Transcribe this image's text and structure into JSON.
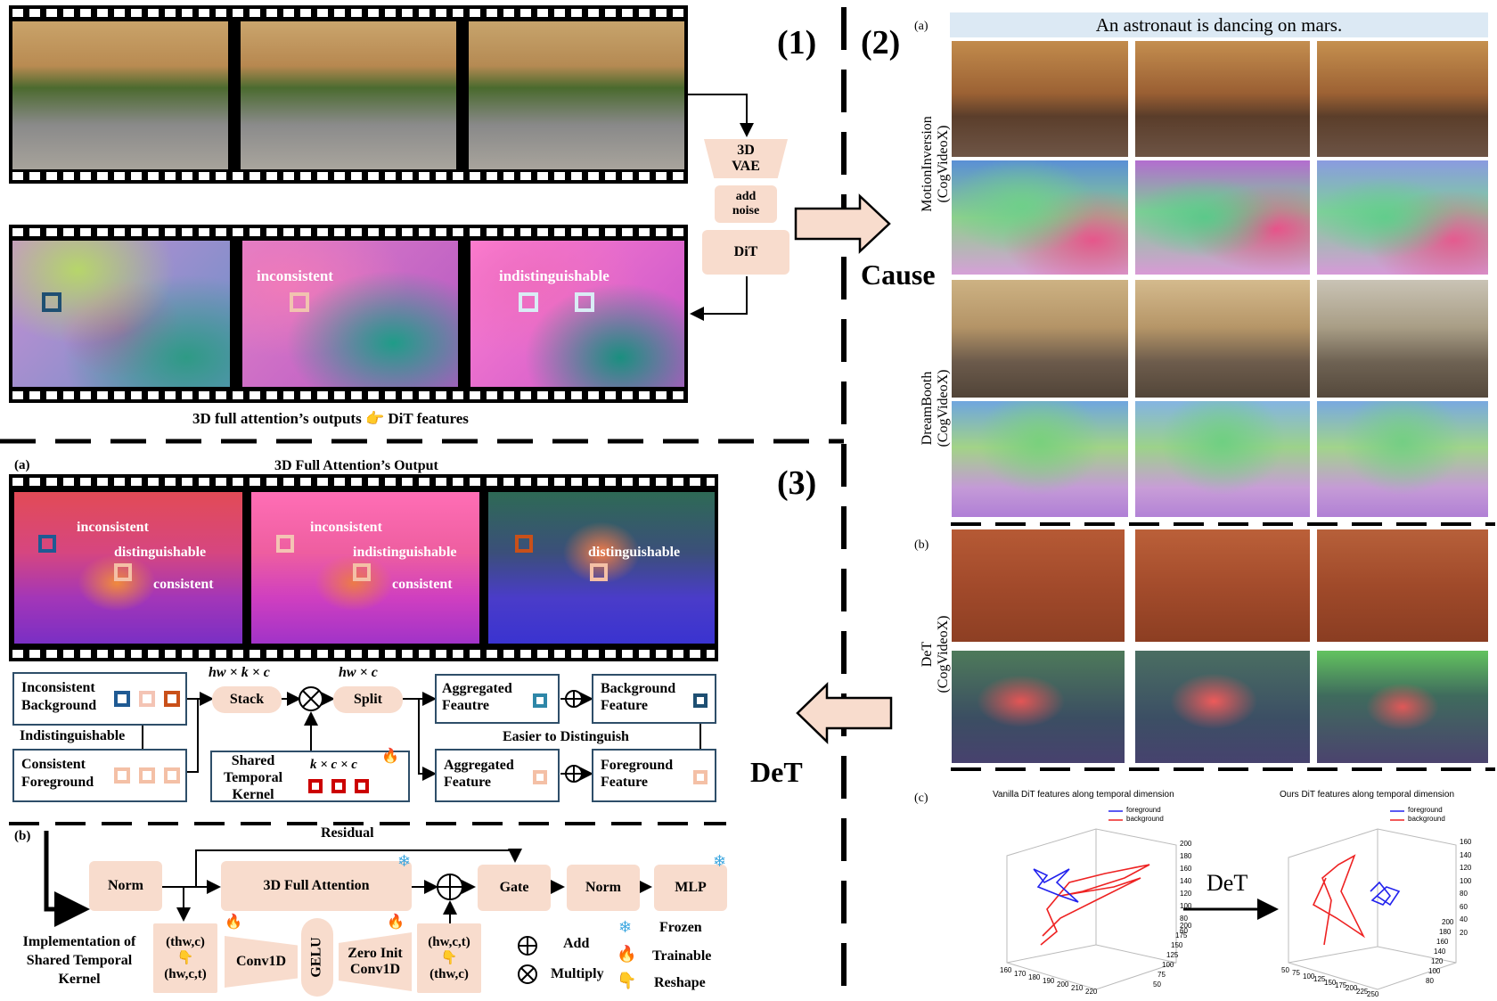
{
  "labels": {
    "p1": "(1)",
    "p2": "(2)",
    "p3": "(3)",
    "a_small": "(a)",
    "b_small": "(b)",
    "c_small": "(c)",
    "cause": "Cause",
    "det_big": "DeT",
    "det_plot": "DeT"
  },
  "part1": {
    "vae": "3D VAE",
    "add_noise": "add noise",
    "dit": "DiT",
    "inconsistent": "inconsistent",
    "indistinguishable": "indistinguishable",
    "caption_left": "3D full attention’s outputs",
    "caption_icon": "👉",
    "caption_right": "DiT features"
  },
  "part2": {
    "prompt": "An astronaut is dancing on mars.",
    "row_label_1": "MotionInversion",
    "row_label_1b": "(CogVideoX)",
    "row_label_2": "DreamBooth",
    "row_label_2b": "(CogVideoX)",
    "row_label_3": "DeT",
    "row_label_3b": "(CogVideoX)",
    "plot_left_title": "Vanilla DiT features along temporal dimension",
    "plot_right_title": "Ours DiT features along temporal dimension",
    "legend_fg": "foreground",
    "legend_bg": "background",
    "left_z_ticks": [
      "200",
      "180",
      "160",
      "140",
      "120",
      "100",
      "80",
      "60"
    ],
    "left_y_ticks": [
      "200",
      "175",
      "150",
      "125",
      "100",
      "75",
      "50"
    ],
    "left_x_ticks": [
      "160",
      "170",
      "180",
      "190",
      "200",
      "210",
      "220"
    ],
    "right_z_ticks": [
      "160",
      "140",
      "120",
      "100",
      "80",
      "60",
      "40",
      "20"
    ],
    "right_y_ticks": [
      "200",
      "180",
      "160",
      "140",
      "120",
      "100",
      "80"
    ],
    "right_x_ticks": [
      "50",
      "75",
      "100",
      "125",
      "150",
      "175",
      "200",
      "225",
      "250"
    ]
  },
  "part3a": {
    "title": "3D Full Attention’s Output",
    "inconsistent": "inconsistent",
    "distinguishable": "distinguishable",
    "consistent": "consistent",
    "indistinguishable": "indistinguishable",
    "inconsistent_bg_l1": "Inconsistent",
    "inconsistent_bg_l2": "Background",
    "indist_label": "Indistinguishable",
    "consistent_fg_l1": "Consistent",
    "consistent_fg_l2": "Foreground",
    "stack_dim": "hw × k × c",
    "stack": "Stack",
    "split_dim": "hw × c",
    "split": "Split",
    "kernel_l1": "Shared",
    "kernel_l2": "Temporal",
    "kernel_l3": "Kernel",
    "kernel_dim": "k × c × c",
    "agg1_l1": "Aggregated",
    "agg1_l2": "Feautre",
    "agg2_l1": "Aggregated",
    "agg2_l2": "Feature",
    "bg_feat_l1": "Background",
    "bg_feat_l2": "Feature",
    "fg_feat_l1": "Foreground",
    "fg_feat_l2": "Feature",
    "easier": "Easier to Distinguish"
  },
  "part3b": {
    "residual": "Residual",
    "norm1": "Norm",
    "attention": "3D Full Attention",
    "gate": "Gate",
    "norm2": "Norm",
    "mlp": "MLP",
    "impl_l1": "Implementation of",
    "impl_l2": "Shared Temporal",
    "impl_l3": "Kernel",
    "reshape_in_top": "(thw,c)",
    "reshape_in_bot": "(hw,c,t)",
    "conv1d": "Conv1D",
    "gelu": "GELU",
    "zero_init_l1": "Zero Init",
    "zero_init_l2": "Conv1D",
    "reshape_out_top": "(hw,c,t)",
    "reshape_out_bot": "(thw,c)",
    "legend_add": "Add",
    "legend_multiply": "Multiply",
    "legend_frozen": "Frozen",
    "legend_trainable": "Trainable",
    "legend_reshape": "Reshape",
    "icon_snow": "❄",
    "icon_fire": "🔥",
    "icon_hand": "👇"
  }
}
